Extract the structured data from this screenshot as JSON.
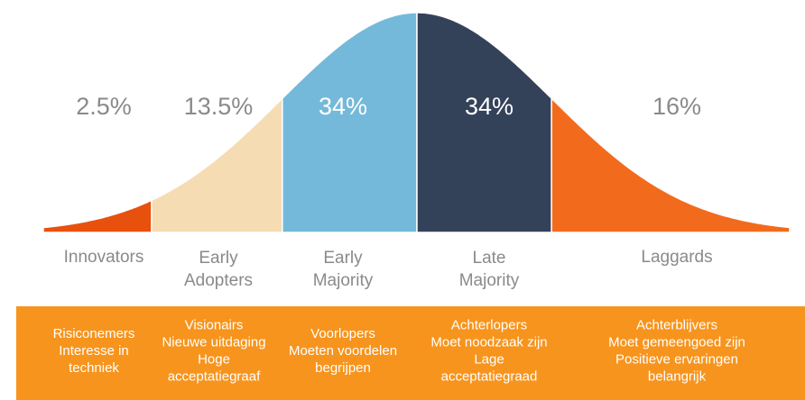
{
  "chart_data": {
    "type": "bell",
    "segments": [
      {
        "name": [
          "Innovators"
        ],
        "value": 2.5,
        "color": "#e8500e",
        "description": [
          "Risiconemers",
          "Interesse in",
          "techniek"
        ]
      },
      {
        "name": [
          "Early",
          "Adopters"
        ],
        "value": 13.5,
        "color": "#f5dcb2",
        "description": [
          "Visionairs",
          "Nieuwe uitdaging",
          "Hoge",
          "acceptatiegraaf"
        ]
      },
      {
        "name": [
          "Early",
          "Majority"
        ],
        "value": 34,
        "color": "#74b9da",
        "description": [
          "Voorlopers",
          "Moeten voordelen",
          "begrijpen"
        ]
      },
      {
        "name": [
          "Late",
          "Majority"
        ],
        "value": 34,
        "color": "#344259",
        "description": [
          "Achterlopers",
          "Moet noodzaak zijn",
          "Lage",
          "acceptatiegraad"
        ]
      },
      {
        "name": [
          "Laggards"
        ],
        "value": 16,
        "color": "#f26b1d",
        "description": [
          "Achterblijvers",
          "Moet gemeengoed zijn",
          "Positieve ervaringen",
          "belangrijk"
        ]
      }
    ],
    "value_labels": [
      "2.5%",
      "13.5%",
      "34%",
      "34%",
      "16%"
    ]
  }
}
